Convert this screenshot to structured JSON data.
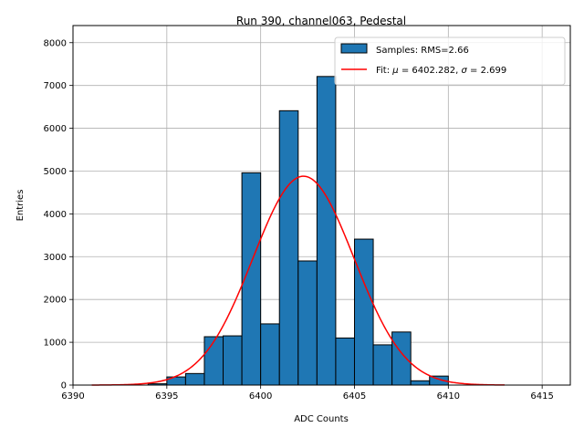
{
  "chart_data": {
    "type": "bar",
    "title": "Run 390, channel063, Pedestal",
    "xlabel": "ADC Counts",
    "ylabel": "Entries",
    "xlim": [
      6390,
      6416.5
    ],
    "ylim": [
      0,
      8400
    ],
    "xticks": [
      6390,
      6395,
      6400,
      6405,
      6410,
      6415
    ],
    "yticks": [
      0,
      1000,
      2000,
      3000,
      4000,
      5000,
      6000,
      7000,
      8000
    ],
    "grid": true,
    "legend_position": "top-right",
    "bin_width": 1,
    "histogram": {
      "name": "Samples: RMS=2.66",
      "color": "#1f77b4",
      "edgecolor": "#000000",
      "bin_left_edges": [
        6394,
        6395,
        6396,
        6397,
        6398,
        6399,
        6400,
        6401,
        6402,
        6403,
        6404,
        6405,
        6406,
        6407,
        6408,
        6409
      ],
      "values": [
        30,
        190,
        270,
        1130,
        1150,
        4960,
        1430,
        6410,
        2900,
        7210,
        1100,
        3410,
        940,
        1240,
        100,
        210
      ]
    },
    "fit": {
      "name_prefix": "Fit: ",
      "mu_value": "6402.282",
      "sigma_value": "2.699",
      "mu": 6402.282,
      "sigma": 2.699,
      "amplitude": 4880,
      "x_range": [
        6391,
        6413
      ],
      "color": "#ff0000"
    }
  }
}
